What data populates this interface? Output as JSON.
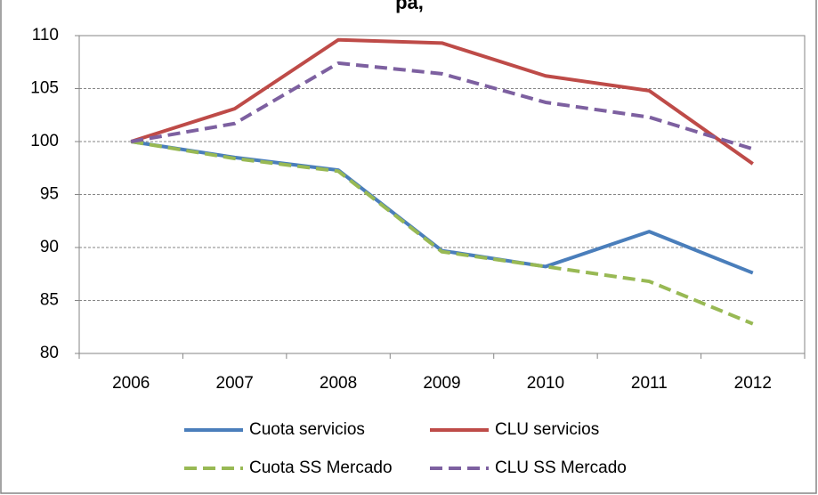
{
  "chart_data": {
    "type": "line",
    "title": "pa,",
    "categories": [
      "2006",
      "2007",
      "2008",
      "2009",
      "2010",
      "2011",
      "2012"
    ],
    "series": [
      {
        "name": "Cuota servicios",
        "color": "#4a7ebb",
        "dashed": false,
        "values": [
          100,
          98.5,
          97.3,
          89.7,
          88.2,
          91.5,
          87.6
        ]
      },
      {
        "name": "CLU servicios",
        "color": "#be4b48",
        "dashed": false,
        "values": [
          100,
          103.1,
          109.6,
          109.3,
          106.2,
          104.8,
          97.9
        ]
      },
      {
        "name": "Cuota SS Mercado",
        "color": "#98b954",
        "dashed": true,
        "values": [
          100,
          98.4,
          97.2,
          89.6,
          88.2,
          86.8,
          82.8
        ]
      },
      {
        "name": "CLU SS Mercado",
        "color": "#7d60a0",
        "dashed": true,
        "values": [
          100,
          101.7,
          107.4,
          106.4,
          103.7,
          102.3,
          99.3
        ]
      }
    ],
    "ylim": [
      80,
      110
    ],
    "yticks": [
      80,
      85,
      90,
      95,
      100,
      105,
      110
    ],
    "grid": true
  }
}
